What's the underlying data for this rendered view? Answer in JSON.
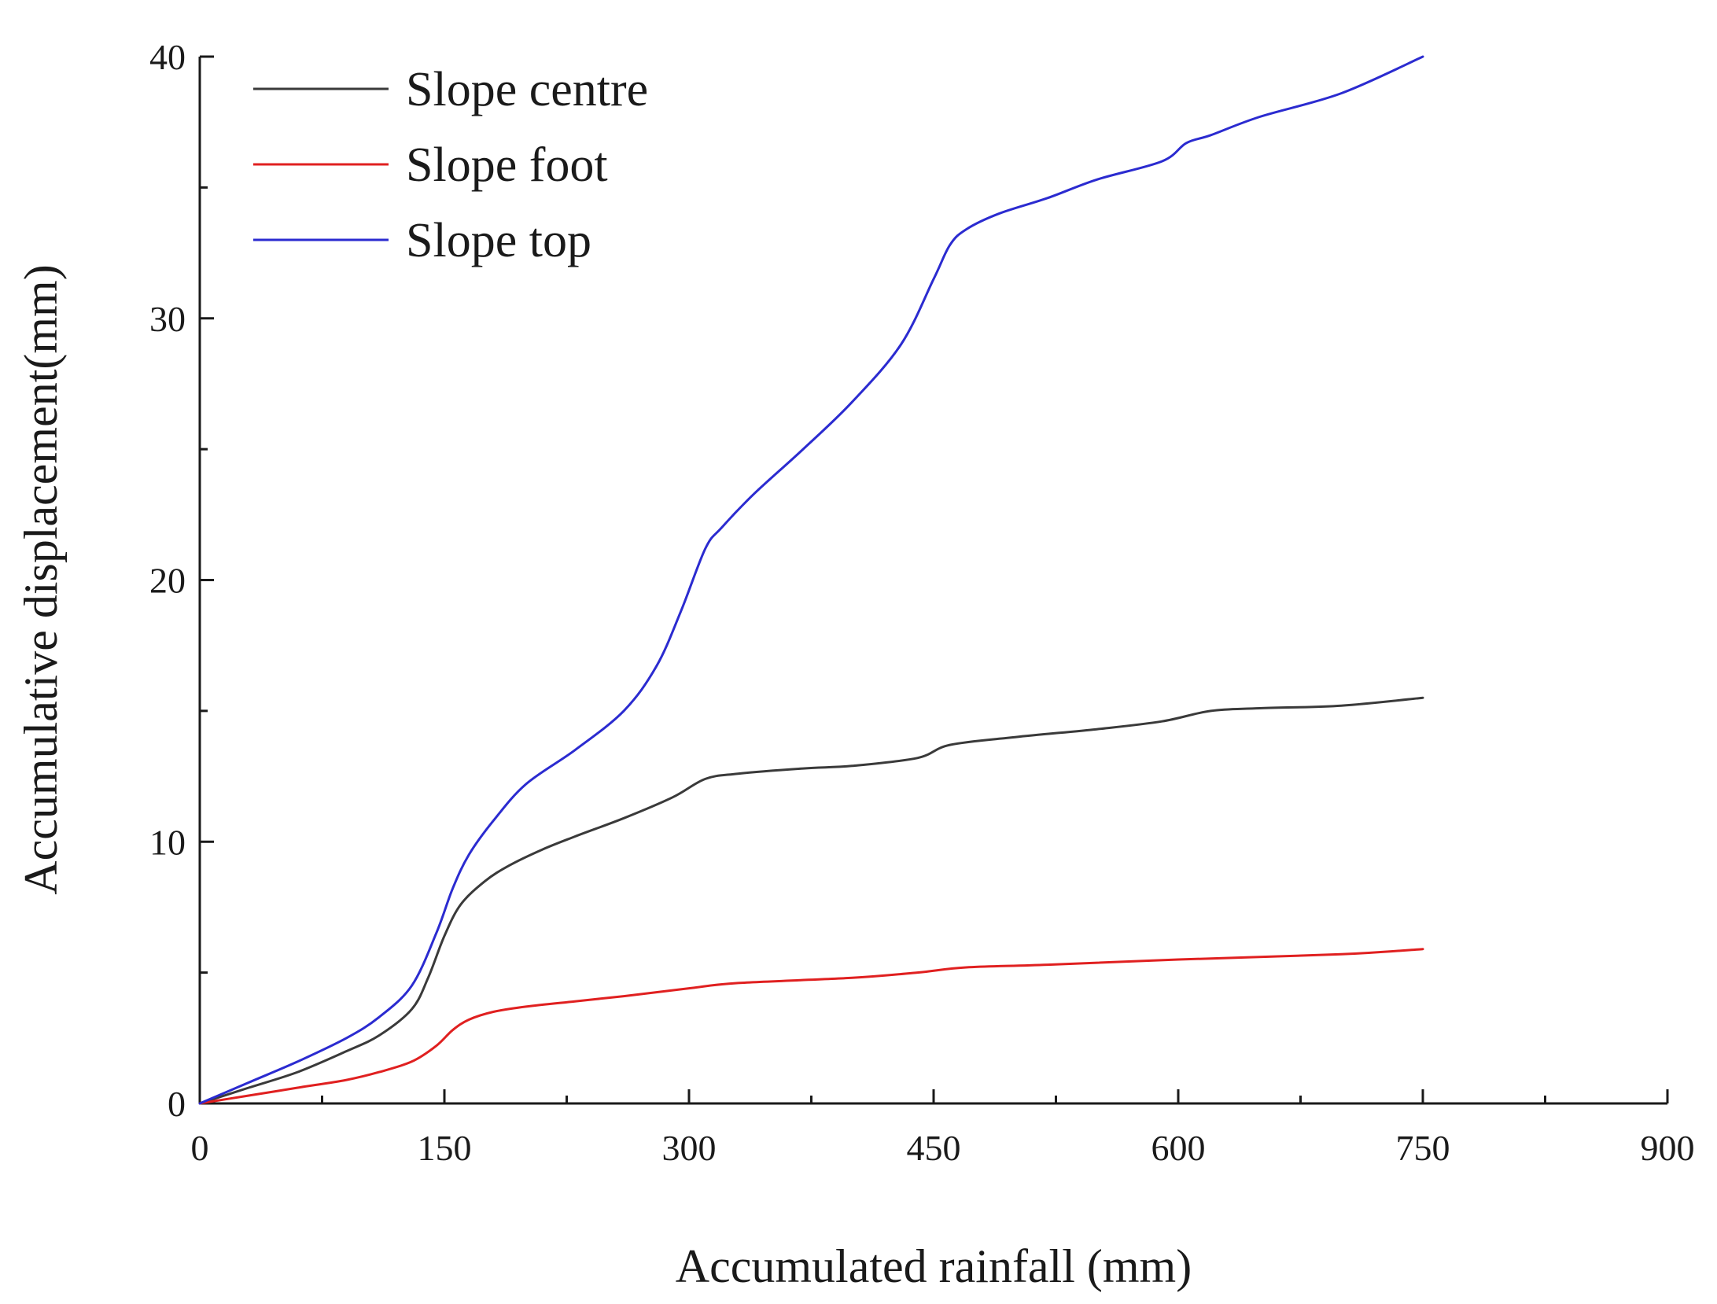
{
  "chart_data": {
    "type": "line",
    "title": "",
    "xlabel": "Accumulated rainfall (mm)",
    "ylabel": "Accumulative displacement(mm)",
    "xlim": [
      0,
      900
    ],
    "ylim": [
      0,
      40
    ],
    "x_ticks": [
      "0",
      "150",
      "300",
      "450",
      "600",
      "750",
      "900"
    ],
    "y_ticks": [
      "0",
      "10",
      "20",
      "30",
      "40"
    ],
    "grid": false,
    "legend_position": "top-left",
    "series": [
      {
        "name": "Slope centre",
        "color": "#3a3a3a",
        "x": [
          0,
          30,
          60,
          90,
          110,
          130,
          140,
          150,
          160,
          175,
          190,
          210,
          230,
          260,
          290,
          310,
          330,
          370,
          400,
          440,
          460,
          500,
          550,
          590,
          620,
          650,
          700,
          750
        ],
        "y": [
          0,
          0.6,
          1.2,
          2.0,
          2.6,
          3.6,
          4.8,
          6.4,
          7.6,
          8.5,
          9.1,
          9.7,
          10.2,
          10.9,
          11.7,
          12.4,
          12.6,
          12.8,
          12.9,
          13.2,
          13.7,
          14.0,
          14.3,
          14.6,
          15.0,
          15.1,
          15.2,
          15.5
        ]
      },
      {
        "name": "Slope foot",
        "color": "#e02020",
        "x": [
          0,
          30,
          60,
          90,
          110,
          130,
          145,
          155,
          165,
          180,
          200,
          230,
          260,
          300,
          330,
          400,
          440,
          470,
          520,
          600,
          700,
          750
        ],
        "y": [
          0,
          0.3,
          0.6,
          0.9,
          1.2,
          1.6,
          2.2,
          2.8,
          3.2,
          3.5,
          3.7,
          3.9,
          4.1,
          4.4,
          4.6,
          4.8,
          5.0,
          5.2,
          5.3,
          5.5,
          5.7,
          5.9
        ]
      },
      {
        "name": "Slope top",
        "color": "#2b2bd0",
        "x": [
          0,
          30,
          60,
          90,
          110,
          130,
          145,
          155,
          165,
          180,
          200,
          230,
          260,
          280,
          295,
          310,
          320,
          340,
          370,
          400,
          430,
          450,
          460,
          470,
          490,
          520,
          550,
          590,
          605,
          620,
          650,
          700,
          750
        ],
        "y": [
          0,
          0.8,
          1.6,
          2.5,
          3.3,
          4.5,
          6.5,
          8.2,
          9.5,
          10.8,
          12.2,
          13.5,
          15.0,
          16.7,
          18.8,
          21.2,
          22.0,
          23.3,
          25.0,
          26.8,
          29.0,
          31.5,
          32.8,
          33.4,
          34.0,
          34.6,
          35.3,
          36.0,
          36.7,
          37.0,
          37.7,
          38.6,
          40.0
        ]
      }
    ]
  }
}
